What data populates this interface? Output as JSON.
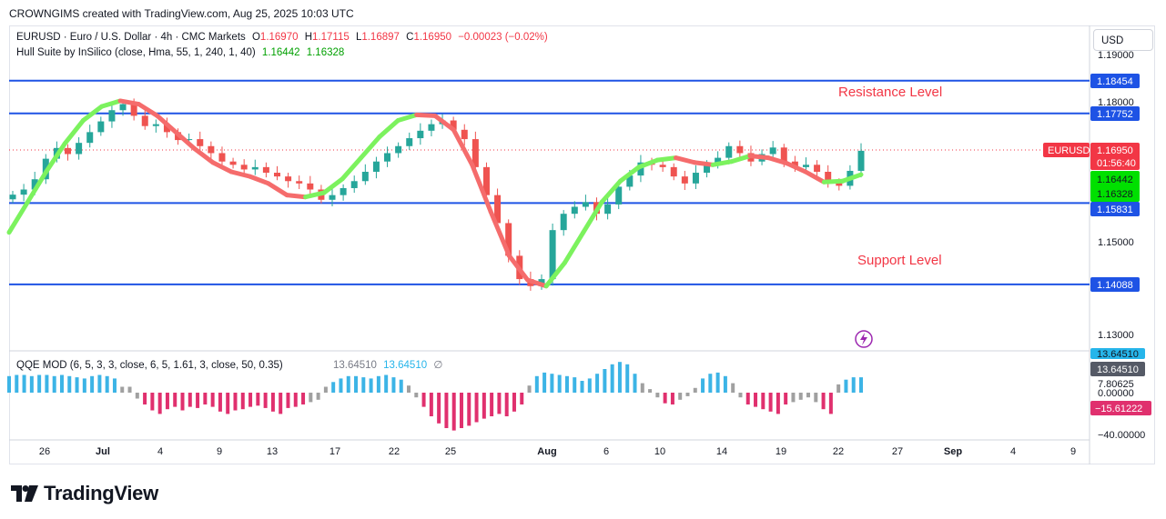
{
  "caption": "CROWNGIMS created with TradingView.com, Aug 25, 2025 10:03 UTC",
  "currency_button": "USD",
  "legend": {
    "symbol": "EURUSD · Euro / U.S. Dollar · 4h · CMC Markets",
    "o_label": "O",
    "o_value": "1.16970",
    "h_label": "H",
    "h_value": "1.17115",
    "l_label": "L",
    "l_value": "1.16897",
    "c_label": "C",
    "c_value": "1.16950",
    "change": "−0.00023 (−0.02%)",
    "indicator": "Hull Suite by InSilico (close, Hma, 55, 1, 240, 1, 40)",
    "hull_value_1": "1.16442",
    "hull_value_2": "1.16328",
    "qqe_label": "QQE MOD (6, 5, 3, 3, close, 6, 5, 1.61, 3, close, 50, 0.35)",
    "qqe_value_1": "13.64510",
    "qqe_value_2": "13.64510",
    "qqe_symbol": "∅"
  },
  "annotations": {
    "resistance": "Resistance Level",
    "support": "Support Level"
  },
  "brand": "TradingView",
  "colors": {
    "up": "#26a69a",
    "down": "#ef5350",
    "level": "#1e53e5",
    "hull_up": "#7cf25e",
    "hull_down": "#f56c6c",
    "qqe_up": "#3cb4e6",
    "qqe_down": "#e0306e",
    "qqe_neutral": "#a0a0a0",
    "price_tag": "#f23645"
  },
  "chart_data": [
    {
      "type": "candlestick",
      "symbol": "EURUSD",
      "timeframe": "4h",
      "x_ticks": [
        "26",
        "Jul",
        "4",
        "9",
        "13",
        "17",
        "22",
        "25",
        "Aug",
        "6",
        "10",
        "14",
        "19",
        "22",
        "27",
        "Sep",
        "4",
        "9"
      ],
      "y_ticks": [
        "1.19000",
        "1.18000",
        "1.15000",
        "1.13000"
      ],
      "horizontal_levels": [
        {
          "value": 1.18454,
          "label": "1.18454"
        },
        {
          "value": 1.17752,
          "label": "1.17752"
        },
        {
          "value": 1.15831,
          "label": "1.15831"
        },
        {
          "value": 1.14088,
          "label": "1.14088"
        }
      ],
      "current_price": {
        "symbol": "EURUSD",
        "value": 1.1695,
        "label": "1.16950",
        "countdown": "01:56:40"
      },
      "hull_values": [
        {
          "value": 1.16442,
          "label": "1.16442"
        },
        {
          "value": 1.16328,
          "label": "1.16328"
        }
      ],
      "closes": [
        1.1601,
        1.1612,
        1.1634,
        1.1678,
        1.1701,
        1.1688,
        1.1712,
        1.1735,
        1.1758,
        1.1782,
        1.1795,
        1.177,
        1.1748,
        1.1752,
        1.1735,
        1.1718,
        1.172,
        1.1705,
        1.169,
        1.1672,
        1.1665,
        1.1655,
        1.166,
        1.1648,
        1.164,
        1.163,
        1.1625,
        1.1612,
        1.159,
        1.16,
        1.1615,
        1.163,
        1.165,
        1.1672,
        1.169,
        1.1705,
        1.1722,
        1.1738,
        1.1752,
        1.176,
        1.174,
        1.172,
        1.166,
        1.16,
        1.154,
        1.147,
        1.142,
        1.1405,
        1.142,
        1.1525,
        1.156,
        1.1575,
        1.1585,
        1.156,
        1.158,
        1.1618,
        1.1642,
        1.167,
        1.1665,
        1.166,
        1.164,
        1.1625,
        1.1648,
        1.1665,
        1.168,
        1.1705,
        1.169,
        1.1672,
        1.1688,
        1.1702,
        1.1672,
        1.166,
        1.1665,
        1.165,
        1.1628,
        1.162,
        1.1652,
        1.1695
      ],
      "hull": [
        1.152,
        1.1585,
        1.165,
        1.171,
        1.176,
        1.179,
        1.1802,
        1.1795,
        1.177,
        1.1735,
        1.17,
        1.167,
        1.165,
        1.164,
        1.1625,
        1.16,
        1.1596,
        1.1605,
        1.1635,
        1.168,
        1.1725,
        1.176,
        1.1772,
        1.177,
        1.174,
        1.1665,
        1.1565,
        1.147,
        1.1418,
        1.1405,
        1.1455,
        1.152,
        1.1585,
        1.163,
        1.166,
        1.1675,
        1.168,
        1.167,
        1.1665,
        1.1672,
        1.1684,
        1.168,
        1.1668,
        1.165,
        1.1628,
        1.163,
        1.1644
      ]
    },
    {
      "type": "bar",
      "name": "QQE MOD",
      "y_ticks": [
        "13.64510",
        "7.80625",
        "0.00000",
        "−15.61222",
        "−40.00000"
      ],
      "current_values": [
        "13.64510",
        "13.64510",
        "−15.61222"
      ],
      "values": [
        14,
        15,
        15,
        14,
        15,
        15,
        14,
        15,
        14,
        13,
        12,
        14,
        15,
        14,
        12,
        5,
        5,
        -5,
        -10,
        -15,
        -18,
        -14,
        -12,
        -15,
        -12,
        -13,
        -10,
        -12,
        -16,
        -18,
        -15,
        -14,
        -12,
        -11,
        -13,
        -16,
        -18,
        -13,
        -12,
        -10,
        -8,
        -6,
        5,
        9,
        12,
        14,
        14,
        13,
        12,
        14,
        15,
        13,
        11,
        6,
        -4,
        -12,
        -20,
        -26,
        -30,
        -32,
        -30,
        -28,
        -25,
        -22,
        -20,
        -18,
        -20,
        -16,
        -10,
        6,
        14,
        17,
        16,
        15,
        14,
        13,
        10,
        12,
        16,
        20,
        24,
        26,
        24,
        16,
        8,
        3,
        -4,
        -9,
        -10,
        -6,
        -3,
        4,
        12,
        16,
        17,
        14,
        8,
        -4,
        -10,
        -12,
        -14,
        -16,
        -18,
        -10,
        -8,
        -6,
        -4,
        -8,
        -14,
        -18,
        7,
        11,
        13,
        13
      ]
    }
  ]
}
